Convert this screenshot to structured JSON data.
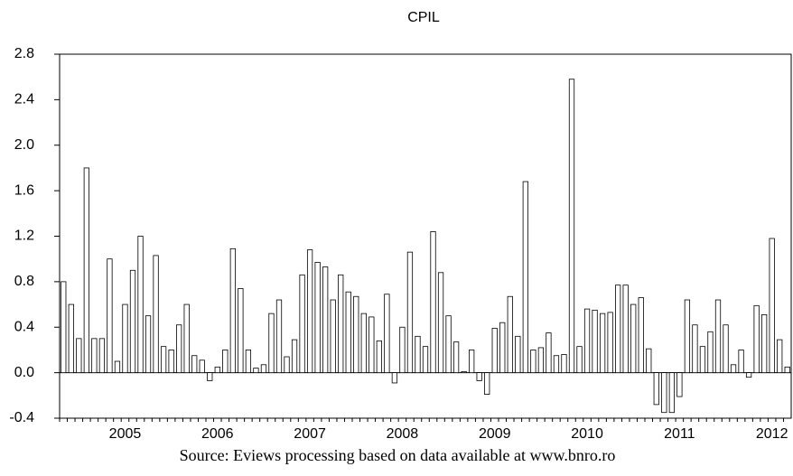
{
  "chart_data": {
    "type": "bar",
    "title": "CPIL",
    "source": "Source: Eviews processing based on data available at www.bnro.ro",
    "color": "#ffffff",
    "categories": [
      null,
      null,
      null,
      null,
      null,
      null,
      null,
      null,
      "2005",
      null,
      null,
      null,
      null,
      null,
      null,
      null,
      null,
      null,
      null,
      null,
      "2006",
      null,
      null,
      null,
      null,
      null,
      null,
      null,
      null,
      null,
      null,
      null,
      "2007",
      null,
      null,
      null,
      null,
      null,
      null,
      null,
      null,
      null,
      null,
      null,
      "2008",
      null,
      null,
      null,
      null,
      null,
      null,
      null,
      null,
      null,
      null,
      null,
      "2009",
      null,
      null,
      null,
      null,
      null,
      null,
      null,
      null,
      null,
      null,
      null,
      "2010",
      null,
      null,
      null,
      null,
      null,
      null,
      null,
      null,
      null,
      null,
      null,
      "2011",
      null,
      null,
      null,
      null,
      null,
      null,
      null,
      null,
      null,
      null,
      null,
      "2012",
      null,
      null
    ],
    "values": [
      0.8,
      0.6,
      0.3,
      1.8,
      0.3,
      0.3,
      1.0,
      0.1,
      0.6,
      0.9,
      1.2,
      0.5,
      1.03,
      0.23,
      0.2,
      0.42,
      0.6,
      0.15,
      0.11,
      -0.07,
      0.05,
      0.2,
      1.09,
      0.74,
      0.2,
      0.04,
      0.07,
      0.52,
      0.64,
      0.14,
      0.29,
      0.86,
      1.08,
      0.97,
      0.93,
      0.64,
      0.86,
      0.71,
      0.67,
      0.52,
      0.49,
      0.28,
      0.69,
      -0.09,
      0.4,
      1.06,
      0.32,
      0.23,
      1.24,
      0.88,
      0.5,
      0.27,
      0.01,
      0.2,
      -0.07,
      -0.19,
      0.39,
      0.44,
      0.67,
      0.32,
      1.68,
      0.2,
      0.22,
      0.35,
      0.15,
      0.16,
      2.58,
      0.23,
      0.56,
      0.55,
      0.52,
      0.53,
      0.77,
      0.77,
      0.6,
      0.66,
      0.21,
      -0.28,
      -0.35,
      -0.35,
      -0.21,
      0.64,
      0.42,
      0.23,
      0.36,
      0.64,
      0.42,
      0.07,
      0.2,
      -0.04,
      0.59,
      0.51,
      1.18,
      0.29,
      0.05
    ],
    "ylim": [
      -0.4,
      2.8
    ],
    "yticks": [
      {
        "value": -0.4,
        "label": "-0.4"
      },
      {
        "value": 0.0,
        "label": "0.0"
      },
      {
        "value": 0.4,
        "label": "0.4"
      },
      {
        "value": 0.8,
        "label": "0.8"
      },
      {
        "value": 1.2,
        "label": "1.2"
      },
      {
        "value": 1.6,
        "label": "1.6"
      },
      {
        "value": 2.0,
        "label": "2.0"
      },
      {
        "value": 2.4,
        "label": "2.4"
      },
      {
        "value": 2.8,
        "label": "2.8"
      }
    ],
    "grid": false
  }
}
